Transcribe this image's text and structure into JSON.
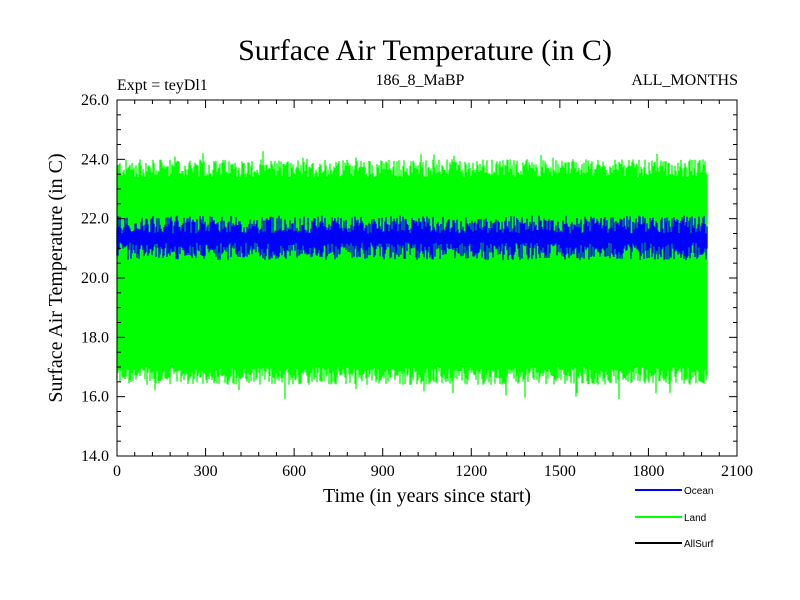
{
  "chart_data": {
    "type": "line",
    "title": "Surface Air Temperature (in C)",
    "subtitle_left": "Expt = teyDl1",
    "subtitle_center": "186_8_MaBP",
    "subtitle_right": "ALL_MONTHS",
    "xlabel": "Time (in years since start)",
    "ylabel": "Surface Air Temperature (in C)",
    "xlim": [
      0,
      2100
    ],
    "ylim": [
      14.0,
      26.0
    ],
    "x_major_ticks": [
      0,
      300,
      600,
      900,
      1200,
      1500,
      1800,
      2100
    ],
    "x_tick_labels": [
      "0",
      "300",
      "600",
      "900",
      "1200",
      "1500",
      "1800",
      "2100"
    ],
    "y_major_ticks": [
      14,
      16,
      18,
      20,
      22,
      24,
      26
    ],
    "y_tick_labels": [
      "14.0",
      "16.0",
      "18.0",
      "20.0",
      "22.0",
      "24.0",
      "26.0"
    ],
    "x_data_range": [
      0,
      2000
    ],
    "series": [
      {
        "name": "Land",
        "color": "#00ff00",
        "mean": 20.3,
        "upper_envelope": 23.7,
        "lower_envelope": 16.7,
        "max": 24.3,
        "min": 15.9
      },
      {
        "name": "Ocean",
        "color": "#0000ff",
        "mean": 21.3,
        "upper_envelope": 21.8,
        "lower_envelope": 20.9,
        "max": 22.0,
        "min": 20.7
      },
      {
        "name": "AllSurf",
        "color": "#000000",
        "mean": 21.0
      }
    ],
    "legend": [
      {
        "label": "Ocean",
        "color": "#0000ff"
      },
      {
        "label": "Land",
        "color": "#00ff00"
      },
      {
        "label": "AllSurf",
        "color": "#000000"
      }
    ],
    "legend_position": "bottom-right"
  }
}
